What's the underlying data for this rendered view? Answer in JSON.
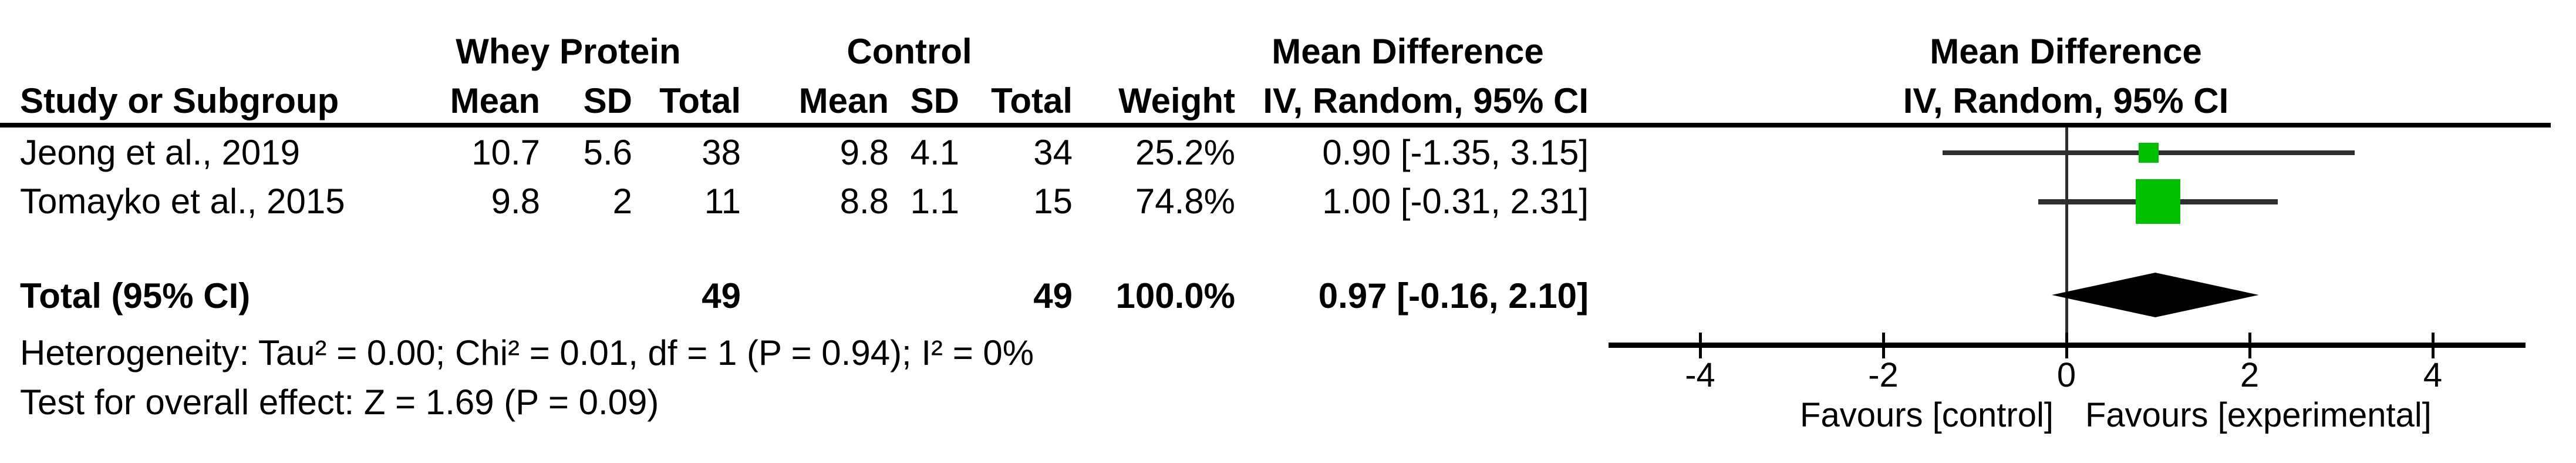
{
  "table": {
    "group_headers": {
      "experimental": "Whey Protein",
      "control": "Control",
      "effect": "Mean Difference"
    },
    "columns": {
      "study": "Study or Subgroup",
      "mean1": "Mean",
      "sd1": "SD",
      "total1": "Total",
      "mean2": "Mean",
      "sd2": "SD",
      "total2": "Total",
      "weight": "Weight",
      "ci": "IV, Random, 95% CI"
    },
    "rows": [
      {
        "study": "Jeong et al., 2019",
        "mean1": "10.7",
        "sd1": "5.6",
        "total1": "38",
        "mean2": "9.8",
        "sd2": "4.1",
        "total2": "34",
        "weight": "25.2%",
        "ci": "0.90 [-1.35, 3.15]"
      },
      {
        "study": "Tomayko et al., 2015",
        "mean1": "9.8",
        "sd1": "2",
        "total1": "11",
        "mean2": "8.8",
        "sd2": "1.1",
        "total2": "15",
        "weight": "74.8%",
        "ci": "1.00 [-0.31, 2.31]"
      }
    ],
    "total_row": {
      "label": "Total (95% CI)",
      "total1": "49",
      "total2": "49",
      "weight": "100.0%",
      "ci": "0.97 [-0.16, 2.10]"
    },
    "heterogeneity": "Heterogeneity: Tau² = 0.00; Chi² = 0.01, df = 1 (P = 0.94); I² = 0%",
    "overall_effect": "Test for overall effect: Z = 1.69 (P = 0.09)"
  },
  "plot": {
    "header_line1": "Mean Difference",
    "header_line2": "IV, Random, 95% CI",
    "favours_left": "Favours [control]",
    "favours_right": "Favours [experimental]",
    "marker_color": "#00C000",
    "line_color": "#2e2e2e",
    "axis_color": "#000000"
  },
  "chart_data": {
    "type": "forest",
    "title": "Mean Difference, IV, Random, 95% CI (Whey Protein vs Control)",
    "x_ticks": [
      -4,
      -2,
      0,
      2,
      4
    ],
    "x_range": [
      -5,
      5
    ],
    "studies": [
      {
        "name": "Jeong et al., 2019",
        "estimate": 0.9,
        "ci_low": -1.35,
        "ci_high": 3.15,
        "weight_pct": 25.2
      },
      {
        "name": "Tomayko et al., 2015",
        "estimate": 1.0,
        "ci_low": -0.31,
        "ci_high": 2.31,
        "weight_pct": 74.8
      }
    ],
    "total": {
      "name": "Total (95% CI)",
      "estimate": 0.97,
      "ci_low": -0.16,
      "ci_high": 2.1,
      "weight_pct": 100.0
    },
    "heterogeneity": {
      "tau2": 0.0,
      "chi2": 0.01,
      "df": 1,
      "p": 0.94,
      "i2_pct": 0
    },
    "overall_effect": {
      "z": 1.69,
      "p": 0.09
    }
  }
}
